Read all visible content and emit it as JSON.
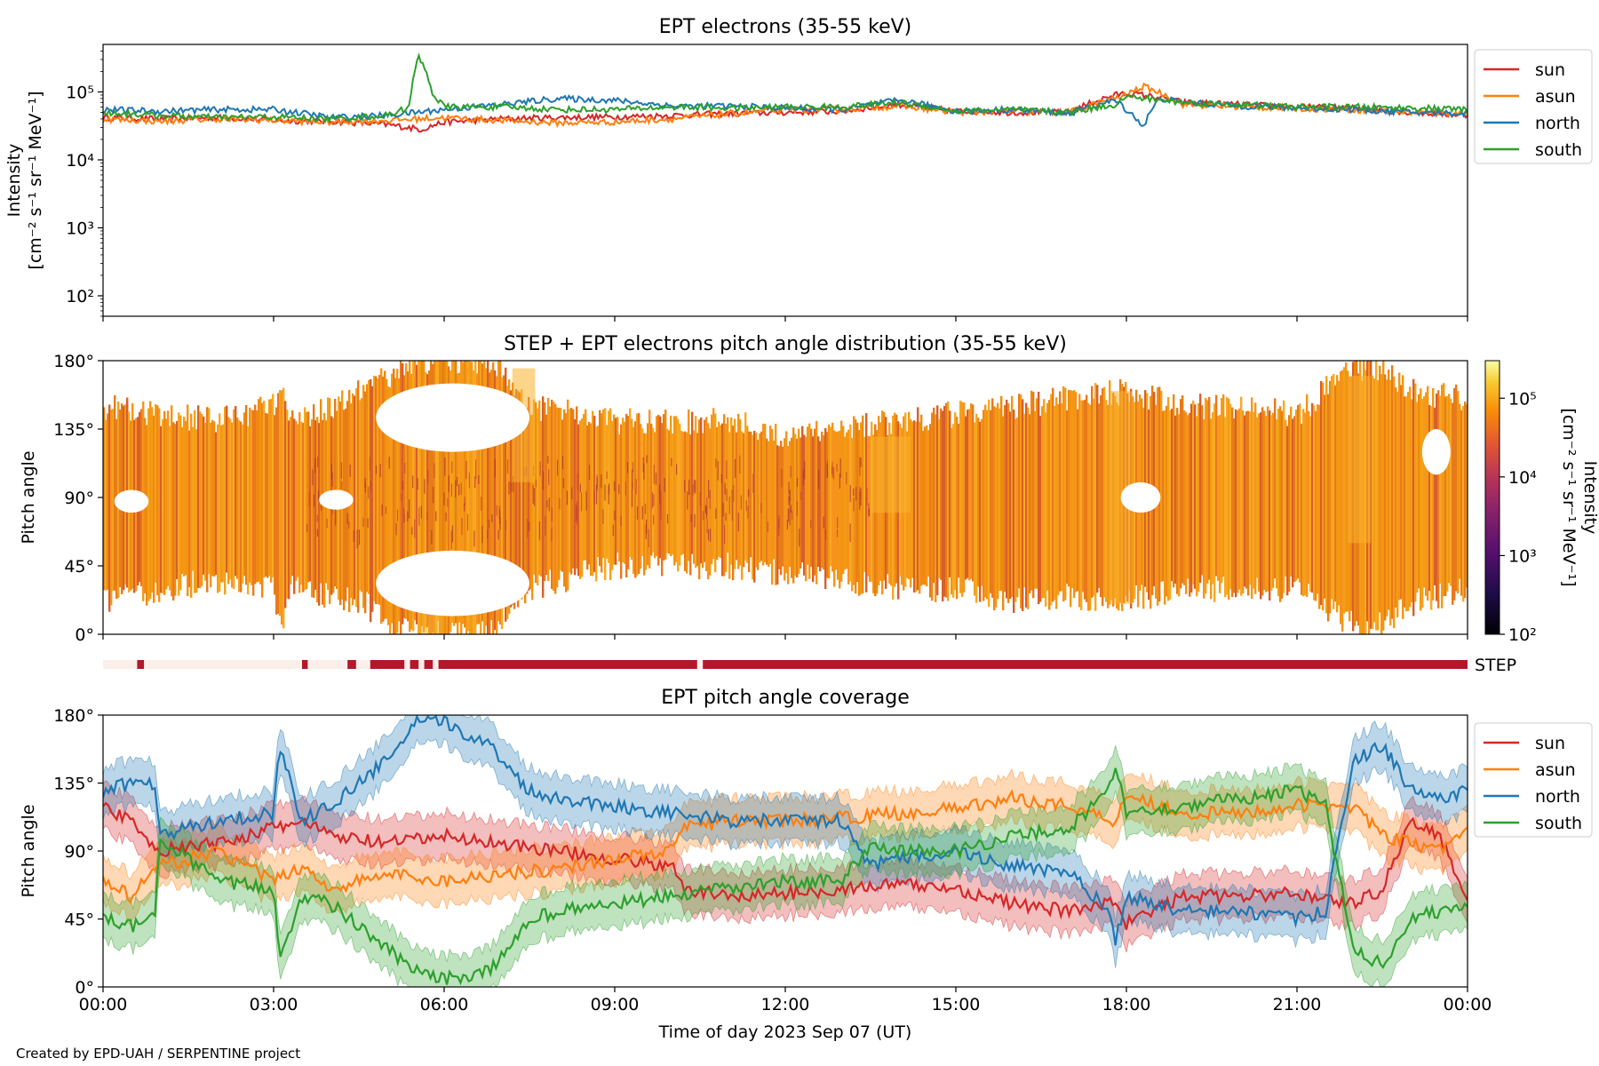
{
  "credit": "Created by EPD-UAH / SERPENTINE project",
  "xlabel": "Time of day 2023 Sep 07 (UT)",
  "x_ticks": [
    "00:00",
    "03:00",
    "06:00",
    "09:00",
    "12:00",
    "15:00",
    "18:00",
    "21:00",
    "00:00"
  ],
  "colors": {
    "sun": "#d62728",
    "asun": "#ff7f0e",
    "north": "#1f77b4",
    "south": "#2ca02c",
    "step": "#b2182b"
  },
  "chart_data": [
    {
      "id": "intensity",
      "type": "line",
      "title": "EPT electrons (35-55 keV)",
      "ylabel_line1": "Intensity",
      "ylabel_line2": "[cm⁻² s⁻¹ sr⁻¹ MeV⁻¹]",
      "yscale": "log",
      "ylim": [
        50,
        500000
      ],
      "y_ticks": [
        "10²",
        "10³",
        "10⁴",
        "10⁵"
      ],
      "x_unit": "hours since 2023-09-07 00:00 UT",
      "xlim": [
        0,
        24
      ],
      "legend": "outside-right",
      "series": [
        {
          "name": "sun",
          "x": [
            0,
            1,
            2,
            3,
            4,
            5,
            5.6,
            6,
            7,
            8,
            9,
            10,
            11,
            12,
            13,
            14,
            15,
            16,
            17,
            17.8,
            18,
            18.3,
            19,
            20,
            21,
            22,
            23,
            24
          ],
          "y": [
            42000,
            40000,
            42000,
            38000,
            37000,
            33000,
            28000,
            36000,
            40000,
            42000,
            43000,
            45000,
            48000,
            50000,
            52000,
            65000,
            52000,
            50000,
            50000,
            90000,
            95000,
            90000,
            70000,
            65000,
            60000,
            58000,
            50000,
            45000
          ]
        },
        {
          "name": "asun",
          "x": [
            0,
            1,
            2,
            3,
            4,
            5,
            6,
            7,
            8,
            9,
            10,
            11,
            12,
            13,
            14,
            15,
            16,
            17,
            17.8,
            18,
            18.3,
            19,
            20,
            21,
            22,
            23,
            24
          ],
          "y": [
            40000,
            37000,
            40000,
            38000,
            36000,
            38000,
            42000,
            38000,
            35000,
            36000,
            40000,
            47000,
            55000,
            55000,
            62000,
            50000,
            52000,
            50000,
            80000,
            90000,
            120000,
            65000,
            60000,
            57000,
            55000,
            50000,
            48000
          ]
        },
        {
          "name": "north",
          "x": [
            0,
            1,
            2,
            3,
            4,
            5,
            6,
            7,
            8,
            9,
            10,
            11,
            12,
            13,
            14,
            15,
            16,
            17,
            17.8,
            18,
            18.3,
            18.6,
            19,
            20,
            21,
            22,
            23,
            24
          ],
          "y": [
            55000,
            52000,
            55000,
            55000,
            42000,
            45000,
            55000,
            65000,
            80000,
            75000,
            62000,
            62000,
            58000,
            55000,
            75000,
            52000,
            55000,
            48000,
            75000,
            55000,
            30000,
            80000,
            70000,
            62000,
            58000,
            55000,
            50000,
            48000
          ]
        },
        {
          "name": "south",
          "x": [
            0,
            1,
            2,
            3,
            4,
            5,
            5.4,
            5.55,
            5.8,
            6,
            7,
            8,
            9,
            10,
            11,
            12,
            13,
            14,
            15,
            16,
            17,
            17.8,
            18,
            18.3,
            19,
            20,
            21,
            22,
            23,
            24
          ],
          "y": [
            50000,
            45000,
            42000,
            43000,
            40000,
            45000,
            60000,
            320000,
            90000,
            60000,
            60000,
            55000,
            55000,
            60000,
            58000,
            60000,
            60000,
            70000,
            52000,
            55000,
            50000,
            65000,
            85000,
            80000,
            70000,
            65000,
            60000,
            60000,
            58000,
            55000
          ]
        }
      ]
    },
    {
      "id": "pad",
      "type": "heatmap",
      "title": "STEP + EPT electrons pitch angle distribution (35-55 keV)",
      "ylabel": "Pitch angle",
      "ylim": [
        0,
        180
      ],
      "y_ticks": [
        "0°",
        "45°",
        "90°",
        "135°",
        "180°"
      ],
      "x_unit": "hours since 2023-09-07 00:00 UT",
      "xlim": [
        0,
        24
      ],
      "colorbar_label_line1": "Intensity",
      "colorbar_label_line2": "[cm⁻² s⁻¹ sr⁻¹ MeV⁻¹]",
      "colorbar_scale": "log",
      "colorbar_range": [
        100,
        300000
      ],
      "colorbar_ticks": [
        "10²",
        "10³",
        "10⁴",
        "10⁵"
      ],
      "colormap": "inferno",
      "coverage": [
        {
          "x": 0,
          "lower": 20,
          "upper": 150
        },
        {
          "x": 1,
          "lower": 30,
          "upper": 145
        },
        {
          "x": 2,
          "lower": 35,
          "upper": 140
        },
        {
          "x": 3,
          "lower": 30,
          "upper": 150
        },
        {
          "x": 3.1,
          "lower": 3,
          "upper": 165
        },
        {
          "x": 3.3,
          "lower": 30,
          "upper": 140
        },
        {
          "x": 4,
          "lower": 25,
          "upper": 150
        },
        {
          "x": 4.6,
          "lower": 20,
          "upper": 160
        },
        {
          "x": 5,
          "lower": 8,
          "upper": 170
        },
        {
          "x": 5.5,
          "lower": 0,
          "upper": 180
        },
        {
          "x": 6,
          "lower": 0,
          "upper": 180
        },
        {
          "x": 6.8,
          "lower": 0,
          "upper": 180
        },
        {
          "x": 7.5,
          "lower": 30,
          "upper": 150
        },
        {
          "x": 9,
          "lower": 45,
          "upper": 140
        },
        {
          "x": 11,
          "lower": 45,
          "upper": 140
        },
        {
          "x": 12,
          "lower": 40,
          "upper": 130
        },
        {
          "x": 14,
          "lower": 30,
          "upper": 140
        },
        {
          "x": 15,
          "lower": 30,
          "upper": 145
        },
        {
          "x": 16,
          "lower": 22,
          "upper": 150
        },
        {
          "x": 17,
          "lower": 25,
          "upper": 155
        },
        {
          "x": 18,
          "lower": 22,
          "upper": 160
        },
        {
          "x": 19,
          "lower": 30,
          "upper": 150
        },
        {
          "x": 20,
          "lower": 30,
          "upper": 150
        },
        {
          "x": 21,
          "lower": 30,
          "upper": 145
        },
        {
          "x": 21.8,
          "lower": 10,
          "upper": 170
        },
        {
          "x": 22.3,
          "lower": 2,
          "upper": 178
        },
        {
          "x": 23,
          "lower": 20,
          "upper": 160
        },
        {
          "x": 24,
          "lower": 30,
          "upper": 155
        }
      ],
      "gaps": [
        {
          "x0": 4.8,
          "x1": 7.5,
          "y0": 120,
          "y1": 165
        },
        {
          "x0": 4.8,
          "x1": 7.5,
          "y0": 12,
          "y1": 55
        },
        {
          "x0": 0.2,
          "x1": 0.8,
          "y0": 80,
          "y1": 95
        },
        {
          "x0": 3.8,
          "x1": 4.4,
          "y0": 82,
          "y1": 95
        },
        {
          "x0": 17.9,
          "x1": 18.6,
          "y0": 80,
          "y1": 100
        },
        {
          "x0": 23.2,
          "x1": 23.7,
          "y0": 105,
          "y1": 135
        }
      ]
    },
    {
      "id": "step",
      "type": "heatmap",
      "label": "STEP",
      "xlim": [
        0,
        24
      ],
      "segments": [
        {
          "x0": 0.6,
          "x1": 0.72
        },
        {
          "x0": 3.5,
          "x1": 3.6
        },
        {
          "x0": 4.3,
          "x1": 4.45
        },
        {
          "x0": 4.7,
          "x1": 5.3
        },
        {
          "x0": 5.4,
          "x1": 5.55
        },
        {
          "x0": 5.65,
          "x1": 5.8
        },
        {
          "x0": 5.9,
          "x1": 10.45
        },
        {
          "x0": 10.55,
          "x1": 24
        }
      ]
    },
    {
      "id": "coverage",
      "type": "line",
      "title": "EPT pitch angle coverage",
      "ylabel": "Pitch angle",
      "ylim": [
        0,
        180
      ],
      "y_ticks": [
        "0°",
        "45°",
        "90°",
        "135°",
        "180°"
      ],
      "x_unit": "hours since 2023-09-07 00:00 UT",
      "xlim": [
        0,
        24
      ],
      "band_halfwidth_deg": 15,
      "legend": "outside-right",
      "series": [
        {
          "name": "sun",
          "x": [
            0,
            0.5,
            1,
            2,
            3,
            3.5,
            4,
            5,
            6,
            7,
            8,
            9,
            10,
            10.2,
            11,
            12,
            13,
            14,
            15,
            16,
            17,
            17.8,
            18,
            19,
            20,
            21,
            22,
            22.5,
            23,
            23.5,
            24
          ],
          "y": [
            120,
            110,
            90,
            95,
            105,
            110,
            100,
            95,
            100,
            95,
            90,
            85,
            80,
            65,
            60,
            62,
            65,
            68,
            65,
            55,
            50,
            58,
            42,
            60,
            60,
            62,
            55,
            65,
            110,
            100,
            60
          ]
        },
        {
          "name": "asun",
          "x": [
            0,
            0.5,
            1,
            2,
            3,
            3.5,
            4,
            5,
            6,
            7,
            8,
            9,
            10,
            10.2,
            11,
            12,
            13,
            14,
            15,
            16,
            17,
            17.8,
            18,
            19,
            20,
            21,
            22,
            22.5,
            23,
            23.5,
            24
          ],
          "y": [
            70,
            60,
            80,
            90,
            70,
            80,
            65,
            75,
            70,
            75,
            78,
            85,
            90,
            105,
            110,
            110,
            112,
            115,
            118,
            125,
            120,
            110,
            128,
            115,
            115,
            120,
            120,
            100,
            95,
            90,
            105
          ]
        },
        {
          "name": "north",
          "x": [
            0,
            0.5,
            0.9,
            1,
            2,
            3,
            3.1,
            3.5,
            4,
            5,
            5.5,
            6,
            6.8,
            7.5,
            8,
            9,
            10,
            11,
            12,
            13,
            13.5,
            14,
            15,
            16,
            17,
            17.7,
            17.8,
            18,
            19,
            20,
            21,
            21.5,
            22,
            22.5,
            23,
            23.5,
            24
          ],
          "y": [
            130,
            135,
            135,
            100,
            110,
            115,
            160,
            110,
            120,
            150,
            175,
            175,
            160,
            130,
            125,
            120,
            115,
            110,
            110,
            110,
            80,
            85,
            90,
            80,
            75,
            50,
            30,
            60,
            50,
            50,
            45,
            50,
            150,
            160,
            130,
            125,
            130
          ]
        },
        {
          "name": "south",
          "x": [
            0,
            0.5,
            0.9,
            1,
            2,
            3,
            3.1,
            3.5,
            4,
            5,
            5.5,
            6,
            6.8,
            7.5,
            8,
            9,
            10,
            11,
            12,
            13,
            13.5,
            14,
            15,
            16,
            17,
            17.7,
            17.8,
            18,
            19,
            20,
            21,
            21.5,
            22,
            22.5,
            23,
            23.5,
            24
          ],
          "y": [
            45,
            40,
            45,
            100,
            70,
            65,
            20,
            60,
            55,
            25,
            10,
            5,
            10,
            45,
            50,
            55,
            60,
            65,
            70,
            70,
            95,
            90,
            90,
            100,
            105,
            130,
            150,
            115,
            120,
            125,
            130,
            120,
            25,
            15,
            45,
            50,
            55
          ]
        }
      ]
    }
  ]
}
